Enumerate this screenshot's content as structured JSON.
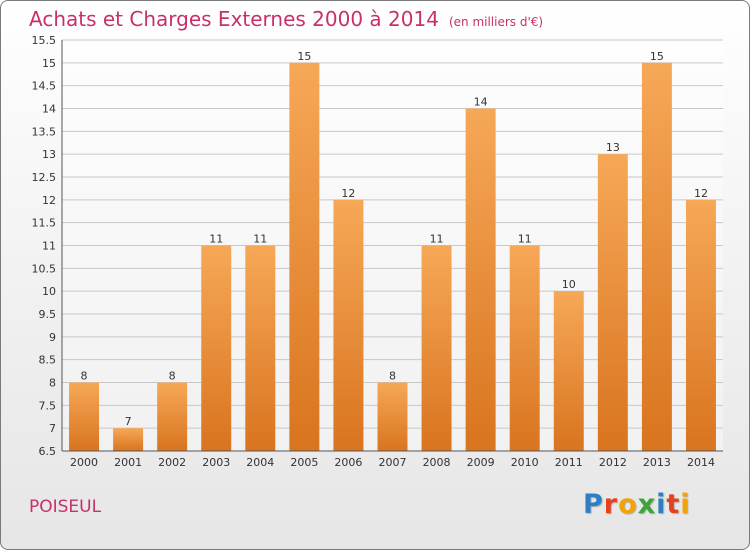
{
  "title": "Achats et Charges Externes 2000 à 2014",
  "unit": "(en milliers d'€)",
  "commune": "POISEUL",
  "brand": "Proxiti",
  "colors": {
    "accent": "#c8306b",
    "bar_light": "#f6a857",
    "bar_dark": "#d9741f",
    "logo": [
      "#2e7fc1",
      "#e8401c",
      "#f0a30a",
      "#3da33a",
      "#2e7fc1",
      "#e8401c",
      "#f0a30a"
    ]
  },
  "chart_data": {
    "type": "bar",
    "categories": [
      "2000",
      "2001",
      "2002",
      "2003",
      "2004",
      "2005",
      "2006",
      "2007",
      "2008",
      "2009",
      "2010",
      "2011",
      "2012",
      "2013",
      "2014"
    ],
    "values": [
      8,
      7,
      8,
      11,
      11,
      15,
      12,
      8,
      11,
      14,
      11,
      10,
      13,
      15,
      12
    ],
    "ylim": [
      6.5,
      15.5
    ],
    "yticks": [
      "6.5",
      "7",
      "7.5",
      "8",
      "8.5",
      "9",
      "9.5",
      "10",
      "10.5",
      "11",
      "11.5",
      "12",
      "12.5",
      "13",
      "13.5",
      "14",
      "14.5",
      "15",
      "15.5"
    ],
    "grid": true,
    "legend": "none"
  }
}
